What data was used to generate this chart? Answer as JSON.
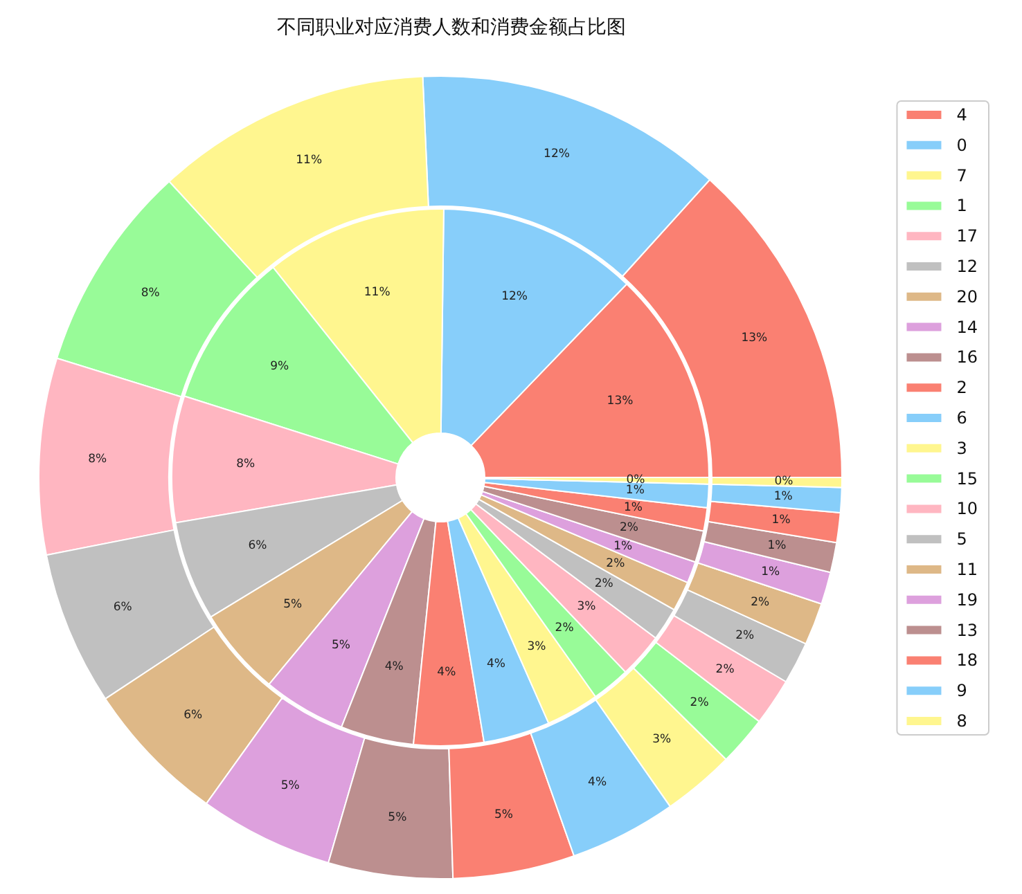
{
  "chart_data": {
    "type": "donut",
    "title": "不同职业对应消费人数和消费金额占比图",
    "categories": [
      "4",
      "0",
      "7",
      "1",
      "17",
      "12",
      "20",
      "14",
      "16",
      "2",
      "6",
      "3",
      "15",
      "10",
      "5",
      "11",
      "19",
      "13",
      "18",
      "9",
      "8"
    ],
    "colors": [
      "#fa8072",
      "#87cefa",
      "#fff68f",
      "#98fb98",
      "#ffb6c1",
      "#c0c0c0",
      "#deb887",
      "#dda0dd",
      "#bc8f8f",
      "#fa8072",
      "#87cefa",
      "#fff68f",
      "#98fb98",
      "#ffb6c1",
      "#c0c0c0",
      "#deb887",
      "#dda0dd",
      "#bc8f8f",
      "#fa8072",
      "#87cefa",
      "#fff68f"
    ],
    "series": [
      {
        "values": [
          12.8,
          12.0,
          10.9,
          9.4,
          7.6,
          6.0,
          5.3,
          5.0,
          4.4,
          4.2,
          4.0,
          3.2,
          2.3,
          2.7,
          2.0,
          1.8,
          1.3,
          1.9,
          1.4,
          1.4,
          0.4
        ],
        "value_labels": [
          "13%",
          "12%",
          "11%",
          "9%",
          "8%",
          "6%",
          "5%",
          "5%",
          "4%",
          "4%",
          "4%",
          "3%",
          "2%",
          "3%",
          "2%",
          "2%",
          "1%",
          "2%",
          "1%",
          "1%",
          "0%"
        ]
      },
      {
        "values": [
          13.3,
          12.4,
          11.1,
          8.4,
          7.9,
          6.2,
          5.8,
          5.4,
          5.0,
          4.9,
          4.3,
          2.9,
          2.0,
          1.9,
          1.7,
          1.7,
          1.3,
          1.2,
          1.2,
          1.0,
          0.4
        ],
        "value_labels": [
          "13%",
          "12%",
          "11%",
          "8%",
          "8%",
          "6%",
          "6%",
          "5%",
          "5%",
          "5%",
          "4%",
          "3%",
          "2%",
          "2%",
          "2%",
          "2%",
          "1%",
          "1%",
          "1%",
          "1%",
          "0%"
        ]
      }
    ],
    "legend": "right"
  }
}
